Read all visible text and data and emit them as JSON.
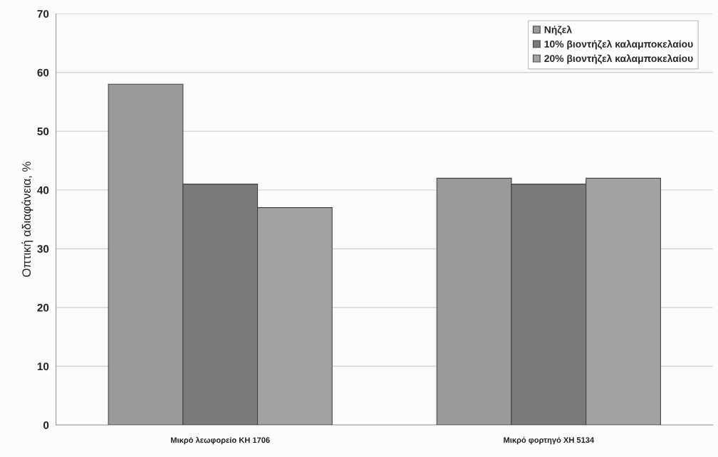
{
  "chart_data": {
    "type": "bar",
    "ylabel": "Οπτική αδιαφάνεια, %",
    "categories": [
      "Μικρό λεωφορείο ΚΗ 1706",
      "Μικρό φορτηγό ΧΗ 5134"
    ],
    "series": [
      {
        "name": "Νήζελ",
        "color": "#9a9a9a",
        "values": [
          58,
          42
        ]
      },
      {
        "name": "10% βιοντήζελ καλαμποκελαίου",
        "color": "#7a7a7a",
        "values": [
          41,
          41
        ]
      },
      {
        "name": "20% βιοντήζελ καλαμποκελαίου",
        "color": "#a2a2a2",
        "values": [
          37,
          42
        ]
      }
    ],
    "ylim": [
      0,
      70
    ],
    "yticks": [
      0,
      10,
      20,
      30,
      40,
      50,
      60,
      70
    ],
    "grid": "y",
    "legend": "top right"
  }
}
